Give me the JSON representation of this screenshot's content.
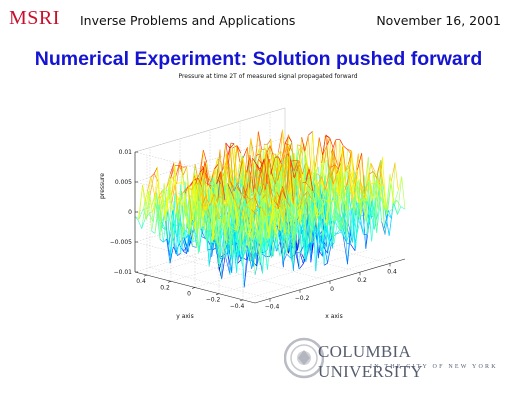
{
  "header": {
    "logo_text": "MSRI",
    "course": "Inverse Problems and Applications",
    "date": "November 16, 2001"
  },
  "slide": {
    "title": "Numerical Experiment: Solution pushed forward"
  },
  "chart_data": {
    "type": "surface",
    "title": "Pressure at time 2T of measured signal propagated forward",
    "xlabel": "x axis",
    "ylabel": "y axis",
    "zlabel": "pressure",
    "xlim": [
      -0.5,
      0.5
    ],
    "ylim": [
      -0.5,
      0.5
    ],
    "zlim": [
      -0.01,
      0.01
    ],
    "x_ticks": [
      "−0.4",
      "−0.2",
      "0",
      "0.2",
      "0.4"
    ],
    "y_ticks": [
      "0.4",
      "0.2",
      "0",
      "−0.2",
      "−0.4"
    ],
    "z_ticks": [
      "0.01",
      "0.005",
      "0",
      "−0.005",
      "−0.01"
    ],
    "grid": true,
    "colormap": "jet",
    "description": "noisy oscillating surface with amplitude up to about ±0.01 over the square [-0.5,0.5]×[-0.5,0.5]"
  },
  "footer": {
    "university": "COLUMBIA UNIVERSITY",
    "city_line": "IN THE CITY OF NEW YORK"
  }
}
